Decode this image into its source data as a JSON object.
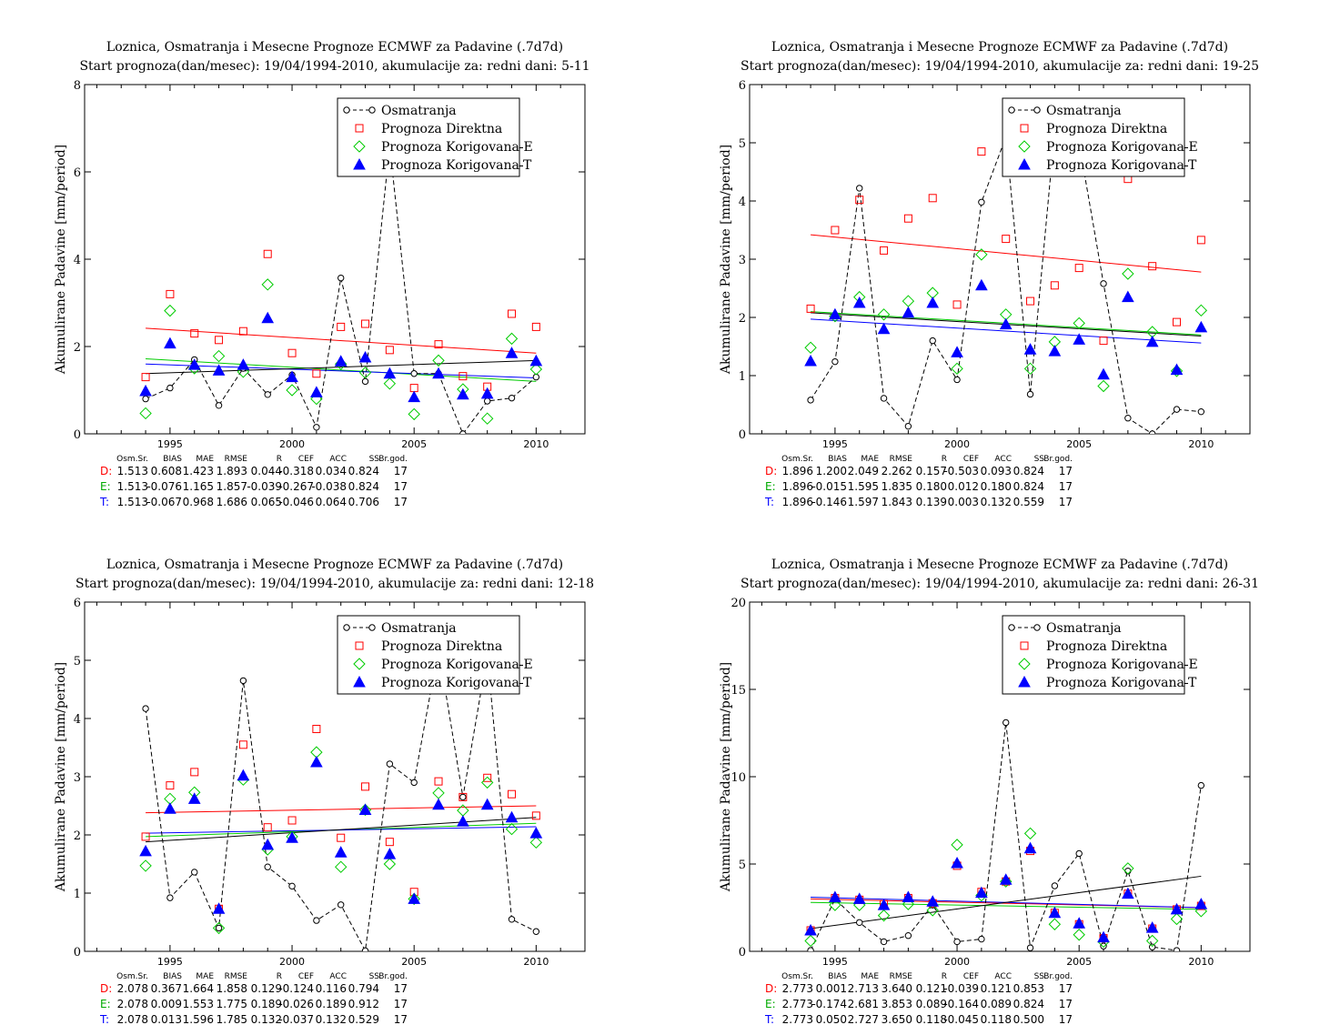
{
  "chart_data": [
    {
      "type": "scatter",
      "title": "Loznica, Osmatranja i Mesecne Prognoze ECMWF za Padavine (.7d7d)",
      "subtitle": "Start prognoza(dan/mesec): 19/04/1994-2010, akumulacije za: redni dani: 5-11",
      "xlabel": "",
      "ylabel": "Akumulirane Padavine [mm/period]",
      "xlim": [
        1991.5,
        2012
      ],
      "ylim": [
        0,
        8
      ],
      "xticks": [
        1995,
        2000,
        2005,
        2010
      ],
      "yticks": [
        0,
        2,
        4,
        6,
        8
      ],
      "x": [
        1994,
        1995,
        1996,
        1997,
        1998,
        1999,
        2000,
        2001,
        2002,
        2003,
        2004,
        2005,
        2006,
        2007,
        2008,
        2009,
        2010
      ],
      "series": [
        {
          "name": "Osmatranja",
          "values": [
            0.8,
            1.05,
            1.7,
            0.65,
            1.5,
            0.9,
            1.35,
            0.15,
            3.57,
            1.2,
            6.6,
            1.38,
            1.38,
            0.0,
            0.75,
            0.82,
            1.3
          ]
        },
        {
          "name": "Prognoza Direktna",
          "values": [
            1.3,
            3.2,
            2.3,
            2.15,
            2.35,
            4.12,
            1.85,
            1.38,
            2.45,
            2.52,
            1.92,
            1.05,
            2.05,
            1.32,
            1.08,
            2.75,
            2.45
          ]
        },
        {
          "name": "Prognoza Korigovana-E",
          "values": [
            0.47,
            2.82,
            1.5,
            1.78,
            1.42,
            3.42,
            1.0,
            0.8,
            1.6,
            1.4,
            1.15,
            0.45,
            1.68,
            1.02,
            0.35,
            2.18,
            1.48
          ]
        },
        {
          "name": "Prognoza Korigovana-T",
          "values": [
            0.98,
            2.07,
            1.58,
            1.45,
            1.58,
            2.65,
            1.3,
            0.95,
            1.66,
            1.75,
            1.38,
            0.84,
            1.38,
            0.9,
            0.92,
            1.85,
            1.67
          ]
        }
      ],
      "trend_lines": [
        {
          "series": "Prognoza Direktna",
          "color": "#ff0000",
          "start": 2.42,
          "end": 1.85
        },
        {
          "series": "Prognoza Korigovana-E",
          "color": "#00cc00",
          "start": 1.72,
          "end": 1.2
        },
        {
          "series": "Prognoza Korigovana-T",
          "color": "#0000ff",
          "start": 1.6,
          "end": 1.28
        },
        {
          "series": "Osmatranja",
          "color": "#000000",
          "start": 1.38,
          "end": 1.68
        }
      ],
      "stats": {
        "headers": [
          "Osm.Sr.",
          "BIAS",
          "MAE",
          "RMSE",
          "R",
          "CEF",
          "ACC",
          "SS",
          "Br.god."
        ],
        "rows": [
          {
            "label": "D:",
            "values": [
              "1.513",
              "0.608",
              "1.423",
              "1.893",
              "0.044",
              "-0.318",
              "0.034",
              "0.824",
              "17"
            ]
          },
          {
            "label": "E:",
            "values": [
              "1.513",
              "-0.076",
              "1.165",
              "1.857",
              "-0.039",
              "-0.267",
              "-0.038",
              "0.824",
              "17"
            ]
          },
          {
            "label": "T:",
            "values": [
              "1.513",
              "-0.067",
              "0.968",
              "1.686",
              "0.065",
              "-0.046",
              "0.064",
              "0.706",
              "17"
            ]
          }
        ]
      }
    },
    {
      "type": "scatter",
      "title": "Loznica, Osmatranja i Mesecne Prognoze ECMWF za Padavine (.7d7d)",
      "subtitle": "Start prognoza(dan/mesec): 19/04/1994-2010, akumulacije za: redni dani: 19-25",
      "xlabel": "",
      "ylabel": "Akumulirane Padavine [mm/period]",
      "xlim": [
        1991.5,
        2012
      ],
      "ylim": [
        0,
        6
      ],
      "xticks": [
        1995,
        2000,
        2005,
        2010
      ],
      "yticks": [
        0,
        1,
        2,
        3,
        4,
        5,
        6
      ],
      "x": [
        1994,
        1995,
        1996,
        1997,
        1998,
        1999,
        2000,
        2001,
        2002,
        2003,
        2004,
        2005,
        2006,
        2007,
        2008,
        2009,
        2010
      ],
      "series": [
        {
          "name": "Osmatranja",
          "values": [
            0.58,
            1.24,
            4.22,
            0.61,
            0.13,
            1.6,
            0.93,
            3.98,
            5.1,
            0.68,
            5.2,
            5.0,
            2.58,
            0.27,
            0.0,
            0.42,
            0.38
          ]
        },
        {
          "name": "Prognoza Direktna",
          "values": [
            2.15,
            3.5,
            4.02,
            3.15,
            3.7,
            4.05,
            2.22,
            4.85,
            3.35,
            2.28,
            2.55,
            2.85,
            1.6,
            4.38,
            2.88,
            1.92,
            3.33
          ]
        },
        {
          "name": "Prognoza Korigovana-E",
          "values": [
            1.48,
            2.02,
            2.35,
            2.05,
            2.28,
            2.42,
            1.12,
            3.08,
            2.05,
            1.12,
            1.58,
            1.9,
            0.82,
            2.75,
            1.75,
            1.08,
            2.12
          ]
        },
        {
          "name": "Prognoza Korigovana-T",
          "values": [
            1.25,
            2.05,
            2.25,
            1.8,
            2.08,
            2.25,
            1.4,
            2.55,
            1.88,
            1.45,
            1.42,
            1.62,
            1.02,
            2.35,
            1.58,
            1.1,
            1.83
          ]
        }
      ],
      "trend_lines": [
        {
          "series": "Prognoza Direktna",
          "color": "#ff0000",
          "start": 3.42,
          "end": 2.78
        },
        {
          "series": "Prognoza Korigovana-E",
          "color": "#00cc00",
          "start": 2.1,
          "end": 1.7
        },
        {
          "series": "Prognoza Korigovana-T",
          "color": "#0000ff",
          "start": 1.97,
          "end": 1.56
        },
        {
          "series": "Osmatranja",
          "color": "#000000",
          "start": 2.08,
          "end": 1.68
        }
      ],
      "stats": {
        "headers": [
          "Osm.Sr.",
          "BIAS",
          "MAE",
          "RMSE",
          "R",
          "CEF",
          "ACC",
          "SS",
          "Br.god."
        ],
        "rows": [
          {
            "label": "D:",
            "values": [
              "1.896",
              "1.200",
              "2.049",
              "2.262",
              "0.157",
              "-0.503",
              "0.093",
              "0.824",
              "17"
            ]
          },
          {
            "label": "E:",
            "values": [
              "1.896",
              "-0.015",
              "1.595",
              "1.835",
              "0.180",
              "0.012",
              "0.180",
              "0.824",
              "17"
            ]
          },
          {
            "label": "T:",
            "values": [
              "1.896",
              "-0.146",
              "1.597",
              "1.843",
              "0.139",
              "0.003",
              "0.132",
              "0.559",
              "17"
            ]
          }
        ]
      }
    },
    {
      "type": "scatter",
      "title": "Loznica, Osmatranja i Mesecne Prognoze ECMWF za Padavine (.7d7d)",
      "subtitle": "Start prognoza(dan/mesec): 19/04/1994-2010, akumulacije za: redni dani: 12-18",
      "xlabel": "",
      "ylabel": "Akumulirane Padavine [mm/period]",
      "xlim": [
        1991.5,
        2012
      ],
      "ylim": [
        0,
        6
      ],
      "xticks": [
        1995,
        2000,
        2005,
        2010
      ],
      "yticks": [
        0,
        1,
        2,
        3,
        4,
        5,
        6
      ],
      "x": [
        1994,
        1995,
        1996,
        1997,
        1998,
        1999,
        2000,
        2001,
        2002,
        2003,
        2004,
        2005,
        2006,
        2007,
        2008,
        2009,
        2010
      ],
      "series": [
        {
          "name": "Osmatranja",
          "values": [
            4.17,
            0.92,
            1.36,
            0.4,
            4.65,
            1.45,
            1.12,
            0.53,
            0.8,
            0.01,
            3.22,
            2.9,
            5.2,
            2.65,
            5.1,
            0.55,
            0.34
          ]
        },
        {
          "name": "Prognoza Direktna",
          "values": [
            1.97,
            2.85,
            3.08,
            0.73,
            3.55,
            2.13,
            2.25,
            3.82,
            1.95,
            2.83,
            1.88,
            1.02,
            2.92,
            2.65,
            2.98,
            2.7,
            2.33
          ]
        },
        {
          "name": "Prognoza Korigovana-E",
          "values": [
            1.47,
            2.62,
            2.73,
            0.4,
            2.95,
            1.75,
            1.97,
            3.42,
            1.45,
            2.43,
            1.5,
            0.9,
            2.72,
            2.42,
            2.9,
            2.1,
            1.87
          ]
        },
        {
          "name": "Prognoza Korigovana-T",
          "values": [
            1.72,
            2.45,
            2.62,
            0.73,
            3.02,
            1.83,
            1.95,
            3.25,
            1.7,
            2.43,
            1.67,
            0.9,
            2.52,
            2.23,
            2.52,
            2.3,
            2.03
          ]
        }
      ],
      "trend_lines": [
        {
          "series": "Prognoza Direktna",
          "color": "#ff0000",
          "start": 2.38,
          "end": 2.5
        },
        {
          "series": "Prognoza Korigovana-E",
          "color": "#00cc00",
          "start": 1.97,
          "end": 2.2
        },
        {
          "series": "Prognoza Korigovana-T",
          "color": "#0000ff",
          "start": 2.03,
          "end": 2.14
        },
        {
          "series": "Osmatranja",
          "color": "#000000",
          "start": 1.88,
          "end": 2.3
        }
      ],
      "stats": {
        "headers": [
          "Osm.Sr.",
          "BIAS",
          "MAE",
          "RMSE",
          "R",
          "CEF",
          "ACC",
          "SS",
          "Br.god."
        ],
        "rows": [
          {
            "label": "D:",
            "values": [
              "2.078",
              "0.367",
              "1.664",
              "1.858",
              "0.129",
              "-0.124",
              "0.116",
              "0.794",
              "17"
            ]
          },
          {
            "label": "E:",
            "values": [
              "2.078",
              "0.009",
              "1.553",
              "1.775",
              "0.189",
              "-0.026",
              "0.189",
              "0.912",
              "17"
            ]
          },
          {
            "label": "T:",
            "values": [
              "2.078",
              "0.013",
              "1.596",
              "1.785",
              "0.132",
              "-0.037",
              "0.132",
              "0.529",
              "17"
            ]
          }
        ]
      }
    },
    {
      "type": "scatter",
      "title": "Loznica, Osmatranja i Mesecne Prognoze ECMWF za Padavine (.7d7d)",
      "subtitle": "Start prognoza(dan/mesec): 19/04/1994-2010, akumulacije za: redni dani: 26-31",
      "xlabel": "",
      "ylabel": "Akumulirane Padavine [mm/period]",
      "xlim": [
        1991.5,
        2012
      ],
      "ylim": [
        0,
        20
      ],
      "xticks": [
        1995,
        2000,
        2005,
        2010
      ],
      "yticks": [
        0,
        5,
        10,
        15,
        20
      ],
      "x": [
        1994,
        1995,
        1996,
        1997,
        1998,
        1999,
        2000,
        2001,
        2002,
        2003,
        2004,
        2005,
        2006,
        2007,
        2008,
        2009,
        2010
      ],
      "series": [
        {
          "name": "Osmatranja",
          "values": [
            0.05,
            3.0,
            1.65,
            0.55,
            0.9,
            2.65,
            0.55,
            0.7,
            13.1,
            0.2,
            3.75,
            5.6,
            0.3,
            4.6,
            0.25,
            0.05,
            9.5
          ]
        },
        {
          "name": "Prognoza Direktna",
          "values": [
            1.2,
            3.05,
            2.95,
            2.7,
            3.05,
            2.75,
            4.9,
            3.4,
            4.0,
            5.75,
            2.2,
            1.55,
            0.75,
            3.3,
            1.3,
            2.4,
            2.6
          ]
        },
        {
          "name": "Prognoza Korigovana-E",
          "values": [
            0.6,
            2.65,
            2.65,
            2.05,
            2.7,
            2.35,
            6.1,
            3.2,
            4.0,
            6.75,
            1.55,
            0.95,
            0.55,
            4.75,
            0.6,
            1.85,
            2.3
          ]
        },
        {
          "name": "Prognoza Korigovana-T",
          "values": [
            1.2,
            3.1,
            3.0,
            2.65,
            3.1,
            2.85,
            5.05,
            3.35,
            4.1,
            5.9,
            2.2,
            1.6,
            0.8,
            3.3,
            1.35,
            2.4,
            2.7
          ]
        }
      ],
      "trend_lines": [
        {
          "series": "Prognoza Direktna",
          "color": "#ff0000",
          "start": 3.0,
          "end": 2.5
        },
        {
          "series": "Prognoza Korigovana-E",
          "color": "#00cc00",
          "start": 2.8,
          "end": 2.4
        },
        {
          "series": "Prognoza Korigovana-T",
          "color": "#0000ff",
          "start": 3.1,
          "end": 2.5
        },
        {
          "series": "Osmatranja",
          "color": "#000000",
          "start": 1.3,
          "end": 4.3
        }
      ],
      "stats": {
        "headers": [
          "Osm.Sr.",
          "BIAS",
          "MAE",
          "RMSE",
          "R",
          "CEF",
          "ACC",
          "SS",
          "Br.god."
        ],
        "rows": [
          {
            "label": "D:",
            "values": [
              "2.773",
              "0.001",
              "2.713",
              "3.640",
              "0.121",
              "-0.039",
              "0.121",
              "0.853",
              "17"
            ]
          },
          {
            "label": "E:",
            "values": [
              "2.773",
              "-0.174",
              "2.681",
              "3.853",
              "0.089",
              "-0.164",
              "0.089",
              "0.824",
              "17"
            ]
          },
          {
            "label": "T:",
            "values": [
              "2.773",
              "0.050",
              "2.727",
              "3.650",
              "0.118",
              "-0.045",
              "0.118",
              "0.500",
              "17"
            ]
          }
        ]
      }
    }
  ],
  "colors": {
    "observed": "#000000",
    "direct": "#ff0000",
    "corrected_e": "#00cc00",
    "corrected_t": "#0000ff",
    "stats_d": "#ff0000",
    "stats_e": "#00aa00",
    "stats_t": "#0000ff"
  },
  "legend": {
    "position": "top-right",
    "entries": [
      "Osmatranja",
      "Prognoza Direktna",
      "Prognoza Korigovana-E",
      "Prognoza Korigovana-T"
    ]
  }
}
